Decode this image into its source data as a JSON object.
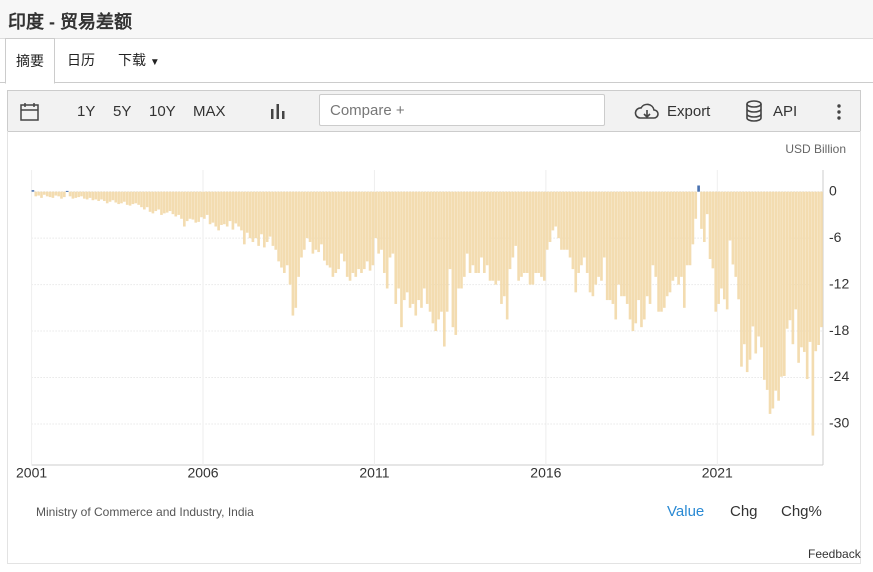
{
  "header": {
    "title": "印度 - 贸易差额"
  },
  "tabs": [
    "摘要",
    "日历",
    "下载"
  ],
  "toolbar": {
    "ranges": [
      "1Y",
      "5Y",
      "10Y",
      "MAX"
    ],
    "compare": "Compare +",
    "export": "Export",
    "api": "API"
  },
  "chart_data": {
    "type": "bar",
    "unit": "USD Billion",
    "categories": [
      "2001",
      null,
      null,
      null,
      null,
      null,
      null,
      null,
      null,
      null,
      null,
      null,
      null,
      null,
      null,
      null,
      null,
      null,
      null,
      null,
      null,
      null,
      null,
      null,
      null,
      null,
      null,
      null,
      null,
      null,
      null,
      null,
      null,
      null,
      null,
      null,
      null,
      null,
      null,
      null,
      null,
      null,
      null,
      null,
      null,
      null,
      null,
      null,
      null,
      null,
      null,
      null,
      null,
      null,
      null,
      null,
      null,
      null,
      null,
      null,
      "2006",
      null,
      null,
      null,
      null,
      null,
      null,
      null,
      null,
      null,
      null,
      null,
      null,
      null,
      null,
      null,
      null,
      null,
      null,
      null,
      null,
      null,
      null,
      null,
      null,
      null,
      null,
      null,
      null,
      null,
      null,
      null,
      null,
      null,
      null,
      null,
      null,
      null,
      null,
      null,
      null,
      null,
      null,
      null,
      null,
      null,
      null,
      null,
      null,
      null,
      null,
      null,
      null,
      null,
      null,
      null,
      null,
      null,
      null,
      null,
      "2011",
      null,
      null,
      null,
      null,
      null,
      null,
      null,
      null,
      null,
      null,
      null,
      null,
      null,
      null,
      null,
      null,
      null,
      null,
      null,
      null,
      null,
      null,
      null,
      null,
      null,
      null,
      null,
      null,
      null,
      null,
      null,
      null,
      null,
      null,
      null,
      null,
      null,
      null,
      null,
      null,
      null,
      null,
      null,
      null,
      null,
      null,
      null,
      null,
      null,
      null,
      null,
      null,
      null,
      null,
      null,
      null,
      null,
      null,
      null,
      "2016",
      null,
      null,
      null,
      null,
      null,
      null,
      null,
      null,
      null,
      null,
      null,
      null,
      null,
      null,
      null,
      null,
      null,
      null,
      null,
      null,
      null,
      null,
      null,
      null,
      null,
      null,
      null,
      null,
      null,
      null,
      null,
      null,
      null,
      null,
      null,
      null,
      null,
      null,
      null,
      null,
      null,
      null,
      null,
      null,
      null,
      null,
      null,
      null,
      null,
      null,
      null,
      null,
      null,
      null,
      null,
      null,
      null,
      null,
      null,
      "2021",
      null,
      null,
      null,
      null,
      null,
      null,
      null,
      null,
      null,
      null,
      null,
      null,
      null,
      null,
      null,
      null,
      null,
      null,
      null,
      null,
      null,
      null,
      null,
      null,
      null,
      null,
      null,
      null,
      null,
      null,
      null,
      null,
      null,
      null,
      null,
      null
    ],
    "values": [
      0.2,
      -0.6,
      -0.5,
      -0.8,
      -0.4,
      -0.6,
      -0.7,
      -0.8,
      -0.5,
      -0.6,
      -0.9,
      -0.7,
      0.1,
      -0.6,
      -0.9,
      -0.8,
      -0.7,
      -0.6,
      -0.9,
      -1.0,
      -0.8,
      -1.1,
      -1.0,
      -1.2,
      -1.0,
      -1.2,
      -1.5,
      -1.3,
      -1.1,
      -1.4,
      -1.6,
      -1.5,
      -1.3,
      -1.7,
      -1.8,
      -1.6,
      -1.5,
      -1.7,
      -2.0,
      -2.3,
      -2.0,
      -2.6,
      -2.8,
      -2.5,
      -2.3,
      -3.0,
      -2.8,
      -2.7,
      -2.5,
      -2.9,
      -3.2,
      -3.0,
      -3.5,
      -4.5,
      -3.8,
      -3.5,
      -3.6,
      -4.0,
      -3.9,
      -3.3,
      -3.5,
      -3.0,
      -4.2,
      -4.0,
      -4.5,
      -5.0,
      -4.3,
      -4.2,
      -4.5,
      -3.8,
      -4.9,
      -4.1,
      -4.5,
      -5.0,
      -6.8,
      -5.3,
      -6.0,
      -6.5,
      -6.0,
      -7.0,
      -5.5,
      -7.2,
      -6.5,
      -5.8,
      -7.0,
      -7.5,
      -9.0,
      -9.8,
      -10.5,
      -9.5,
      -12.0,
      -16.0,
      -15.0,
      -11.0,
      -8.5,
      -7.5,
      -6.0,
      -6.5,
      -8.0,
      -7.5,
      -7.8,
      -6.8,
      -8.9,
      -9.5,
      -9.8,
      -11.0,
      -10.5,
      -10.0,
      -8.0,
      -9.0,
      -11.0,
      -11.5,
      -10.5,
      -11.0,
      -10.0,
      -10.5,
      -10.0,
      -9.0,
      -10.2,
      -9.5,
      -6.0,
      -8.0,
      -7.5,
      -10.5,
      -12.5,
      -8.5,
      -8.0,
      -14.5,
      -12.5,
      -17.5,
      -14.0,
      -13.0,
      -15.0,
      -14.5,
      -16.0,
      -14.0,
      -15.0,
      -12.5,
      -14.5,
      -15.5,
      -17.0,
      -18.0,
      -16.5,
      -15.5,
      -20.0,
      -15.5,
      -10.0,
      -17.5,
      -18.5,
      -12.5,
      -12.5,
      -11.0,
      -8.0,
      -10.5,
      -9.5,
      -10.5,
      -10.5,
      -8.5,
      -10.5,
      -9.5,
      -11.5,
      -11.5,
      -12.0,
      -11.5,
      -14.5,
      -13.5,
      -16.5,
      -10.0,
      -8.5,
      -7.0,
      -11.5,
      -11.0,
      -10.5,
      -10.5,
      -12.0,
      -12.0,
      -10.5,
      -10.5,
      -11.0,
      -11.5,
      -7.5,
      -6.5,
      -5.0,
      -4.5,
      -6.0,
      -7.5,
      -7.5,
      -7.5,
      -8.5,
      -10.0,
      -13.0,
      -10.5,
      -9.5,
      -8.5,
      -10.5,
      -13.0,
      -13.5,
      -12.0,
      -11.0,
      -11.5,
      -8.5,
      -14.0,
      -14.0,
      -14.5,
      -16.5,
      -12.0,
      -13.5,
      -13.5,
      -14.5,
      -16.5,
      -18.0,
      -17.0,
      -14.0,
      -17.5,
      -16.5,
      -13.5,
      -14.5,
      -9.5,
      -11.0,
      -15.5,
      -15.5,
      -15.0,
      -13.5,
      -13.0,
      -11.5,
      -11.0,
      -12.0,
      -11.0,
      -15.0,
      -9.5,
      -9.5,
      -6.8,
      -3.5,
      0.8,
      -4.8,
      -6.5,
      -2.9,
      -8.7,
      -9.9,
      -15.5,
      -14.5,
      -12.5,
      -13.9,
      -15.2,
      -6.3,
      -9.4,
      -11.0,
      -13.9,
      -22.6,
      -19.7,
      -23.3,
      -21.7,
      -17.4,
      -20.9,
      -18.7,
      -20.1,
      -24.3,
      -25.6,
      -28.7,
      -28.0,
      -25.7,
      -27.0,
      -23.9,
      -23.8,
      -17.7,
      -16.6,
      -19.7,
      -15.2,
      -22.1,
      -20.1,
      -20.7,
      -24.2,
      -19.4,
      -31.5,
      -20.6,
      -19.8,
      -17.5
    ],
    "color": "#f3dcb0",
    "positive_color": "#4a72b0",
    "ylim": [
      -35.3,
      2.8
    ],
    "yticks": [
      0,
      -6,
      -12,
      -18,
      -24,
      -30
    ],
    "grid": true
  },
  "footer": {
    "source": "Ministry of Commerce and Industry, India",
    "modes": [
      "Value",
      "Chg",
      "Chg%"
    ],
    "feedback": "Feedback"
  }
}
